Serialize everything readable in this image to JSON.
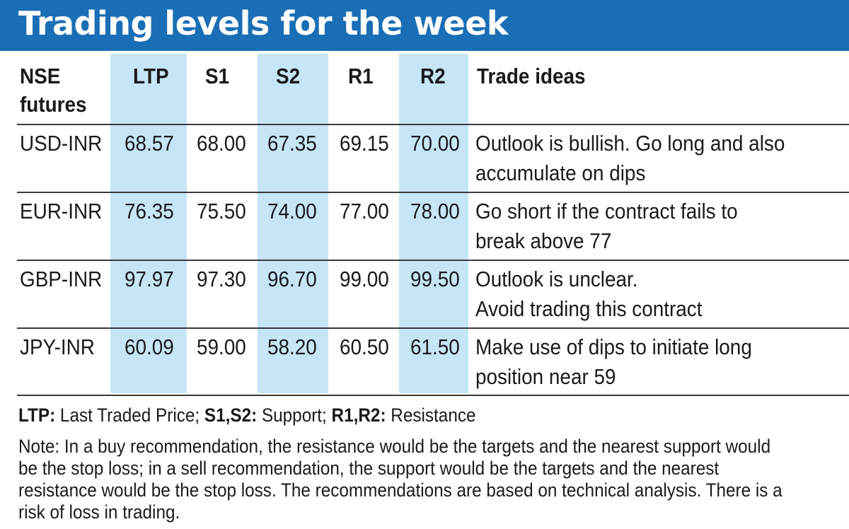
{
  "title": "Trading levels for the week",
  "table": {
    "headers": {
      "instrument_line1": "NSE",
      "instrument_line2": "futures",
      "ltp": "LTP",
      "s1": "S1",
      "s2": "S2",
      "r1": "R1",
      "r2": "R2",
      "ideas": "Trade ideas"
    },
    "rows": [
      {
        "name": "USD-INR",
        "ltp": "68.57",
        "s1": "68.00",
        "s2": "67.35",
        "r1": "69.15",
        "r2": "70.00",
        "idea1": "Outlook is bullish. Go long and also",
        "idea2": "accumulate on dips"
      },
      {
        "name": "EUR-INR",
        "ltp": "76.35",
        "s1": "75.50",
        "s2": "74.00",
        "r1": "77.00",
        "r2": "78.00",
        "idea1": "Go short if the contract fails to",
        "idea2": "break above 77"
      },
      {
        "name": "GBP-INR",
        "ltp": "97.97",
        "s1": "97.30",
        "s2": "96.70",
        "r1": "99.00",
        "r2": "99.50",
        "idea1": "Outlook is unclear.",
        "idea2": "Avoid trading this contract"
      },
      {
        "name": "JPY-INR",
        "ltp": "60.09",
        "s1": "59.00",
        "s2": "58.20",
        "r1": "60.50",
        "r2": "61.50",
        "idea1": "Make use of dips to initiate long",
        "idea2": "position near 59"
      }
    ]
  },
  "legend": {
    "ltp_key": "LTP:",
    "ltp_text": " Last Traded Price; ",
    "s_key": "S1,S2:",
    "s_text": " Support; ",
    "r_key": "R1,R2:",
    "r_text": " Resistance"
  },
  "note": "Note: In a buy recommendation, the resistance would be the targets and the nearest support would be the stop loss; in a sell recommendation, the support would be the targets and the nearest resistance would be the stop loss. The recommendations are based on technical analysis. There is a risk of loss in trading.",
  "colors": {
    "title_bar": "#1a6eb5",
    "column_shade": "#c6e6f7"
  }
}
